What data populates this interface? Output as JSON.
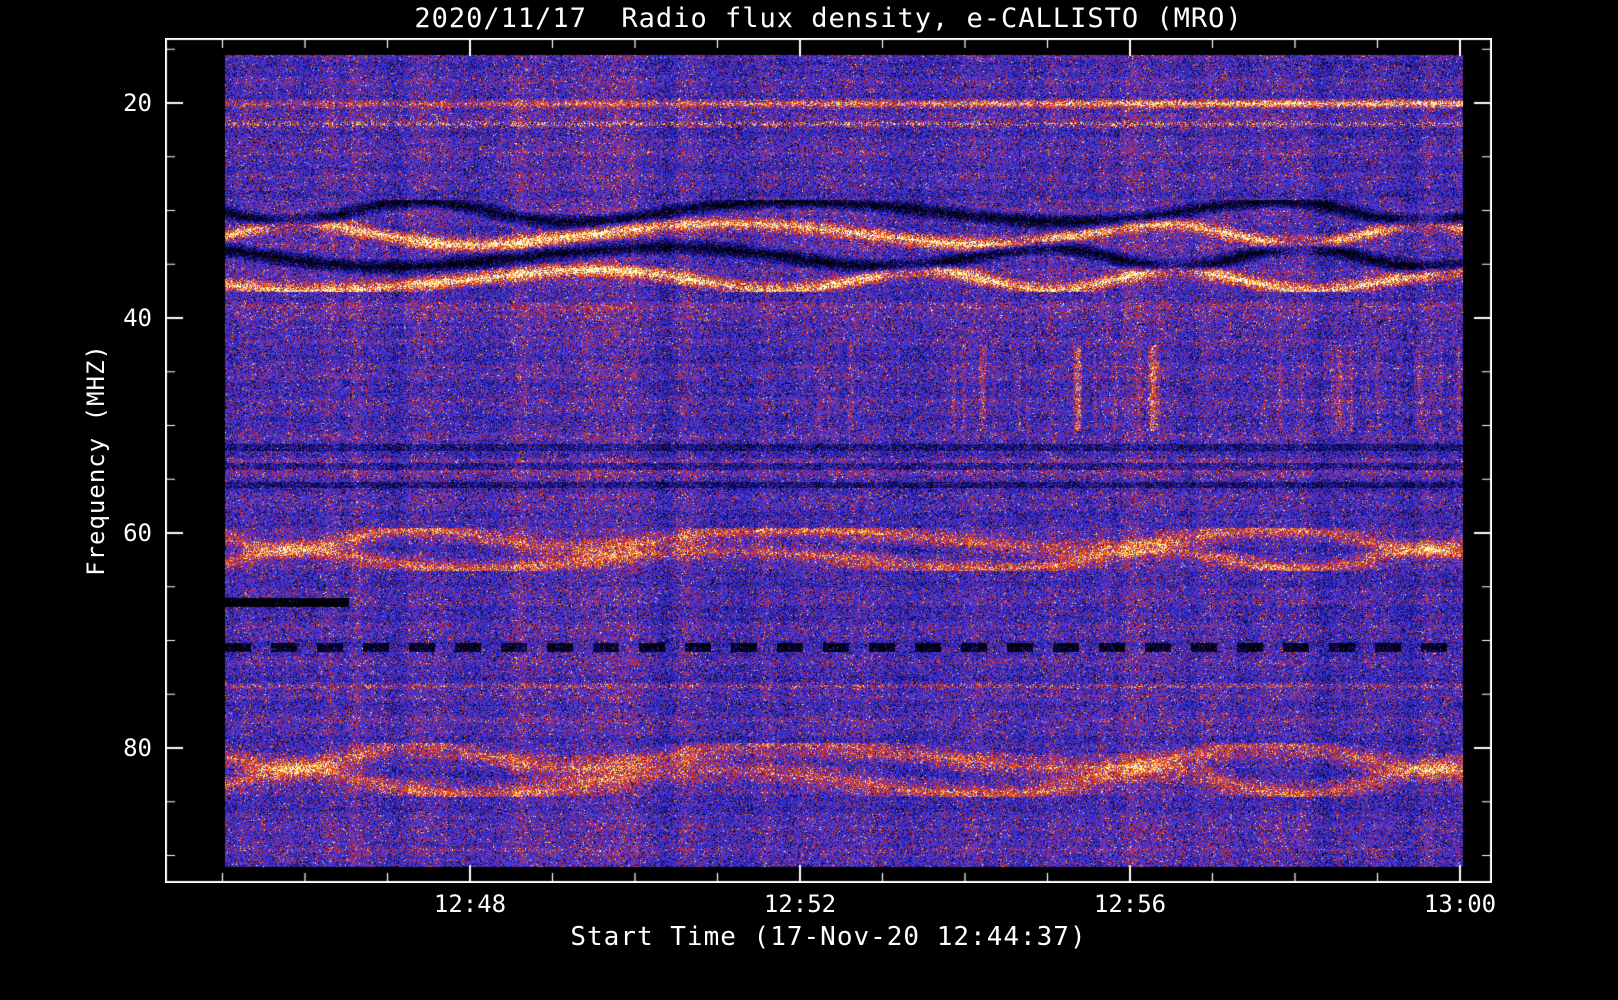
{
  "title": "2020/11/17  Radio flux density, e-CALLISTO (MRO)",
  "axes": {
    "x": {
      "label": "Start Time (17-Nov-20 12:44:37)",
      "ticks": [
        "12:48",
        "12:52",
        "12:56",
        "13:00"
      ]
    },
    "y": {
      "label": "Frequency (MHZ)",
      "ticks": [
        "20",
        "40",
        "60",
        "80"
      ]
    }
  },
  "colors": {
    "background": "#000000",
    "frame": "#ffffff",
    "text": "#ffffff"
  },
  "chart_data": {
    "type": "heatmap",
    "title": "2020/11/17  Radio flux density, e-CALLISTO (MRO)",
    "xlabel": "Start Time (17-Nov-20 12:44:37)",
    "ylabel": "Frequency (MHZ)",
    "station": "e-CALLISTO (MRO)",
    "date": "2020/11/17",
    "start_time": "12:44:37",
    "x_ticks": [
      "12:48",
      "12:52",
      "12:56",
      "13:00"
    ],
    "y_ticks": [
      20,
      40,
      60,
      80
    ],
    "y_range_mhz": [
      14,
      92.6
    ],
    "y_axis_increases_downward": true,
    "colormap": "blue-red-yellow (e-CALLISTO standard)",
    "background_character": "medium blue noise densely speckled with red and black pixels; no solar burst visible, mostly terrestrial interference bands",
    "features": [
      {
        "type": "bright_line",
        "f": 20.0,
        "width": 0.6,
        "amp": 0.52,
        "xgrow": 1,
        "label": "strong yellow-orange RFI line at ~20 MHz, intensifying toward the right"
      },
      {
        "type": "speckle_line",
        "f": 21.9,
        "width": 0.45,
        "amp": 0.42,
        "label": "intermittent speckled RFI line at ~22 MHz"
      },
      {
        "type": "red_band",
        "f0": 24.5,
        "f1": 25.5,
        "amp": 0.08,
        "label": "faint reddish band near 25 MHz"
      },
      {
        "type": "wavy",
        "f0": 29.0,
        "f1": 37.5,
        "lines": 4,
        "amp": 0.5,
        "label": "strong wavy interference pattern 29-37 MHz with alternating orange and black undulating lines"
      },
      {
        "type": "red_band",
        "f0": 38.5,
        "f1": 41.0,
        "amp": 0.1,
        "label": "reddish speckled band 39-41 MHz"
      },
      {
        "type": "vstripes",
        "f0": 42.5,
        "f1": 50.5,
        "amp": 0.3,
        "xstart": 0.4,
        "label": "red vertical striping 43-50 MHz, strongest in right half after ~12:53"
      },
      {
        "type": "dark_rows",
        "f0": 52.0,
        "f1": 55.5,
        "rows": 3,
        "amp": 0.3,
        "label": "dark speckled horizontal rows 52-55 MHz"
      },
      {
        "type": "red_band",
        "f0": 53.0,
        "f1": 55.0,
        "amp": 0.1,
        "label": "red speckle mixed into 53-55 MHz rows"
      },
      {
        "type": "wavy_red",
        "f0": 59.5,
        "f1": 63.5,
        "lines": 2,
        "amp": 0.3,
        "label": "wavy red arc pattern 60-63 MHz"
      },
      {
        "type": "dark_line_partial",
        "f": 66.4,
        "x0": 0.0,
        "x1": 0.1,
        "amp": 0.75,
        "label": "solid black line ~66 MHz at far left only"
      },
      {
        "type": "dashed_dark",
        "f": 70.6,
        "amp": 0.55,
        "period": 46,
        "duty": 0.55,
        "label": "dashed black line across full width at ~70.5 MHz"
      },
      {
        "type": "speckle_line",
        "f": 74.2,
        "width": 0.4,
        "amp": 0.25,
        "label": "speckled faint line ~74 MHz"
      },
      {
        "type": "red_band",
        "f0": 76.5,
        "f1": 77.5,
        "amp": 0.08,
        "label": "faint band ~77 MHz"
      },
      {
        "type": "wavy_red",
        "f0": 79.5,
        "f1": 84.5,
        "lines": 2,
        "amp": 0.28,
        "label": "wavy red arc pattern 80-84 MHz"
      },
      {
        "type": "red_band",
        "f0": 87.5,
        "f1": 89.5,
        "amp": 0.08,
        "label": "faint reddish band near 88 MHz"
      }
    ]
  }
}
